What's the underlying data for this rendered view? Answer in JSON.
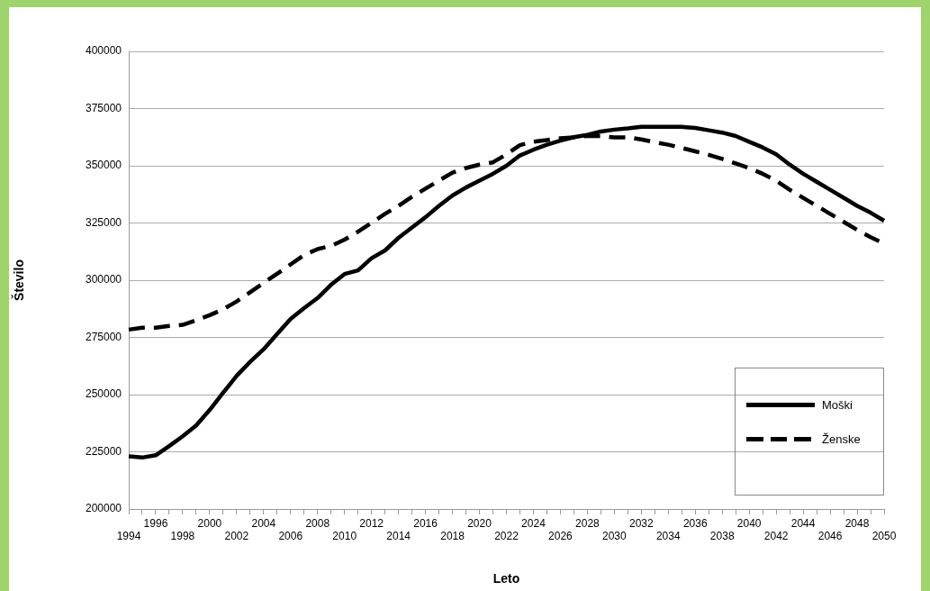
{
  "chart_data": {
    "type": "line",
    "xlabel": "Leto",
    "ylabel": "Število",
    "categories": [
      "1994",
      null,
      "1996",
      null,
      "1998",
      null,
      "2000",
      null,
      "2002",
      null,
      "2004",
      null,
      "2006",
      null,
      "2008",
      null,
      "2010",
      null,
      "2012",
      null,
      "2014",
      null,
      "2016",
      null,
      "2018",
      null,
      "2020",
      null,
      "2022",
      null,
      "2024",
      null,
      "2026",
      null,
      "2028",
      null,
      "2030",
      null,
      "2032",
      null,
      "2034",
      null,
      "2036",
      null,
      "2038",
      null,
      "2040",
      null,
      "2042",
      null,
      "2044",
      null,
      "2046",
      null,
      "2048",
      null,
      "2050"
    ],
    "series": [
      {
        "name": "Moški",
        "color": "#000000",
        "line_style": "solid",
        "values": [
          223000,
          222500,
          223500,
          227500,
          231800,
          236500,
          243300,
          250800,
          258200,
          264300,
          269800,
          276500,
          283100,
          287800,
          292200,
          298000,
          302700,
          304300,
          309600,
          313000,
          318500,
          323000,
          327500,
          332500,
          337000,
          340500,
          343500,
          346500,
          350000,
          354500,
          357000,
          359200,
          361000,
          362500,
          363500,
          365000,
          365800,
          366300,
          367000,
          367000,
          367000,
          367000,
          366500,
          365500,
          364500,
          363000,
          360500,
          358000,
          355000,
          350500,
          346500,
          343000,
          339500,
          336000,
          332500,
          329500,
          326000
        ]
      },
      {
        "name": "Ženske",
        "color": "#000000",
        "line_style": "dashed",
        "values": [
          278400,
          279200,
          279200,
          280000,
          280500,
          282500,
          284700,
          287300,
          290700,
          294700,
          298800,
          302800,
          306900,
          311000,
          313600,
          315000,
          317700,
          321200,
          325100,
          329000,
          332500,
          336500,
          340000,
          343500,
          347000,
          349000,
          350500,
          351500,
          355000,
          359000,
          360500,
          361200,
          362000,
          362400,
          363000,
          363000,
          362400,
          362400,
          361500,
          360300,
          359200,
          357800,
          356300,
          354800,
          353000,
          351000,
          349000,
          346500,
          343500,
          339500,
          336000,
          332500,
          329000,
          325500,
          322000,
          318800,
          316000
        ]
      }
    ],
    "ylim": [
      200000,
      400000
    ],
    "yticks": [
      200000,
      225000,
      250000,
      275000,
      300000,
      325000,
      350000,
      375000,
      400000
    ],
    "grid": "y",
    "legend": "bottom right",
    "marker": "none"
  }
}
